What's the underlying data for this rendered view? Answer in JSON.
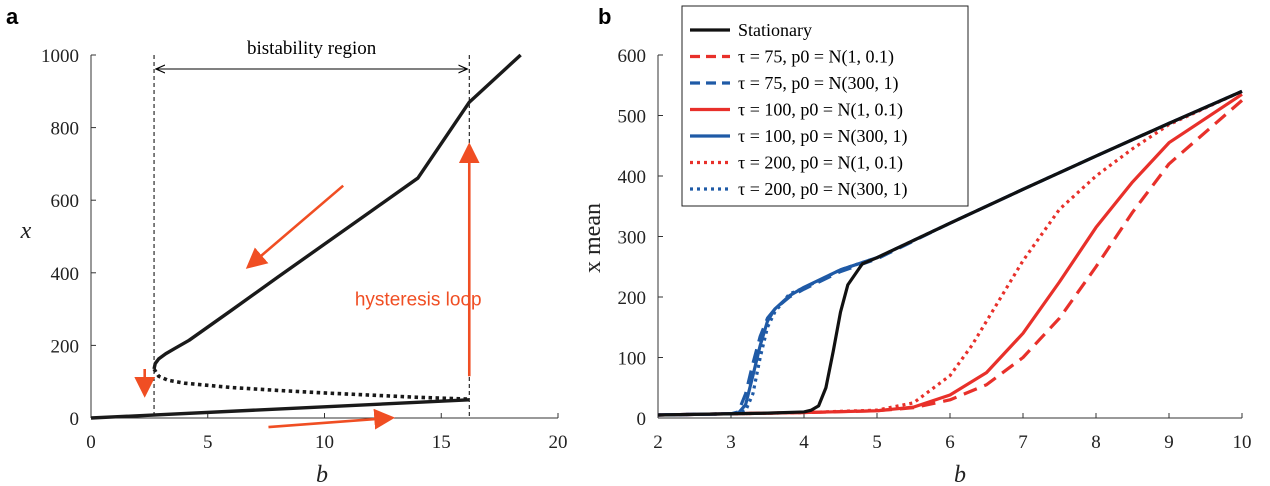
{
  "figure": {
    "panel_a_label": "a",
    "panel_b_label": "b"
  },
  "chart_data": [
    {
      "type": "line",
      "panel": "a",
      "xlabel": "b",
      "ylabel": "x",
      "xlim": [
        0,
        20
      ],
      "ylim": [
        0,
        1000
      ],
      "xticks": [
        0,
        5,
        10,
        15,
        20
      ],
      "yticks": [
        0,
        200,
        400,
        600,
        800,
        1000
      ],
      "grid": false,
      "annotations": {
        "region_label": "bistability region",
        "loop_label": "hysteresis loop",
        "region_bounds": [
          2.7,
          16.2
        ]
      },
      "series": [
        {
          "style": "solid",
          "color": "#1a1a1a",
          "x": [
            0,
            16.2
          ],
          "y": [
            0,
            50
          ]
        },
        {
          "style": "solid",
          "color": "#1a1a1a",
          "x": [
            2.7,
            2.75,
            2.9,
            3.2,
            3.6,
            4.2,
            6,
            8,
            10,
            12,
            14,
            16.2,
            18.4
          ],
          "y": [
            135,
            150,
            163,
            177,
            192,
            214,
            296,
            388,
            479,
            570,
            661,
            870,
            1000
          ]
        },
        {
          "style": "dotted",
          "color": "#1a1a1a",
          "x": [
            2.7,
            2.9,
            3.3,
            4,
            5,
            6,
            8,
            10,
            12,
            14,
            16.2
          ],
          "y": [
            135,
            115,
            104,
            96,
            90,
            84,
            76,
            69,
            63,
            57,
            52
          ]
        }
      ],
      "arrows": [
        {
          "direction": "down-left",
          "from": [
            10.8,
            640
          ],
          "to": [
            6.8,
            420
          ]
        },
        {
          "direction": "up",
          "from": [
            16.2,
            115
          ],
          "to": [
            16.2,
            745
          ]
        },
        {
          "direction": "down",
          "from": [
            2.3,
            135
          ],
          "to": [
            2.3,
            70
          ]
        },
        {
          "direction": "right",
          "from": [
            7.6,
            -25
          ],
          "to": [
            12.8,
            0
          ]
        }
      ],
      "arrow_color": "#f04e23"
    },
    {
      "type": "line",
      "panel": "b",
      "xlabel": "b",
      "ylabel": "x mean",
      "xlim": [
        2,
        10
      ],
      "ylim": [
        0,
        600
      ],
      "xticks": [
        2,
        3,
        4,
        5,
        6,
        7,
        8,
        9,
        10
      ],
      "yticks": [
        0,
        100,
        200,
        300,
        400,
        500,
        600
      ],
      "grid": false,
      "legend_position": "top-left",
      "series": [
        {
          "name": "Stationary",
          "style": "solid",
          "color": "#111111",
          "x": [
            2,
            3,
            3.5,
            4,
            4.1,
            4.2,
            4.3,
            4.4,
            4.5,
            4.6,
            4.8,
            5,
            6,
            7,
            8,
            9,
            10
          ],
          "y": [
            5,
            7,
            8,
            10,
            13,
            20,
            50,
            110,
            175,
            220,
            255,
            265,
            322,
            378,
            433,
            487,
            540
          ]
        },
        {
          "name": "τ = 75, p0 = N(1, 0.1)",
          "style": "dashed",
          "color": "#e8302a",
          "x": [
            2,
            3,
            4,
            5,
            5.5,
            6,
            6.5,
            7,
            7.5,
            8,
            8.5,
            9,
            10
          ],
          "y": [
            5,
            7,
            9,
            12,
            17,
            30,
            55,
            100,
            165,
            250,
            340,
            420,
            525
          ]
        },
        {
          "name": "τ = 75, p0 = N(300, 1)",
          "style": "dashed",
          "color": "#1f5aa6",
          "x": [
            2,
            3,
            3.1,
            3.2,
            3.3,
            3.4,
            3.5,
            3.6,
            3.8,
            4,
            4.5,
            5,
            6,
            7,
            8,
            9,
            10
          ],
          "y": [
            5,
            7,
            10,
            40,
            90,
            135,
            165,
            180,
            200,
            213,
            242,
            263,
            322,
            378,
            433,
            487,
            540
          ]
        },
        {
          "name": "τ = 100, p0 = N(1, 0.1)",
          "style": "solid",
          "color": "#e8302a",
          "x": [
            2,
            3,
            4,
            5,
            5.5,
            6,
            6.5,
            7,
            7.5,
            8,
            8.5,
            9,
            10
          ],
          "y": [
            5,
            7,
            9,
            12,
            18,
            38,
            75,
            140,
            225,
            315,
            390,
            455,
            535
          ]
        },
        {
          "name": "τ = 100, p0 = N(300, 1)",
          "style": "solid",
          "color": "#1f5aa6",
          "x": [
            2,
            3,
            3.1,
            3.2,
            3.3,
            3.4,
            3.5,
            3.6,
            3.8,
            4,
            4.5,
            5,
            6,
            7,
            8,
            9,
            10
          ],
          "y": [
            5,
            7,
            8,
            22,
            70,
            120,
            160,
            180,
            202,
            216,
            245,
            265,
            322,
            378,
            433,
            487,
            540
          ]
        },
        {
          "name": "τ = 200, p0 = N(1, 0.1)",
          "style": "dotted",
          "color": "#e8302a",
          "x": [
            2,
            3,
            4,
            5,
            5.5,
            6,
            6.3,
            6.5,
            7,
            7.5,
            8,
            8.5,
            9,
            10
          ],
          "y": [
            5,
            7,
            9,
            13,
            25,
            70,
            120,
            160,
            260,
            345,
            400,
            445,
            485,
            540
          ]
        },
        {
          "name": "τ = 200, p0 = N(300, 1)",
          "style": "dotted",
          "color": "#1f5aa6",
          "x": [
            2,
            3,
            3.1,
            3.2,
            3.3,
            3.4,
            3.5,
            3.6,
            3.8,
            4,
            4.5,
            5,
            6,
            7,
            8,
            9,
            10
          ],
          "y": [
            5,
            7,
            8,
            12,
            40,
            100,
            150,
            175,
            205,
            215,
            245,
            265,
            322,
            378,
            433,
            487,
            540
          ]
        }
      ]
    }
  ]
}
